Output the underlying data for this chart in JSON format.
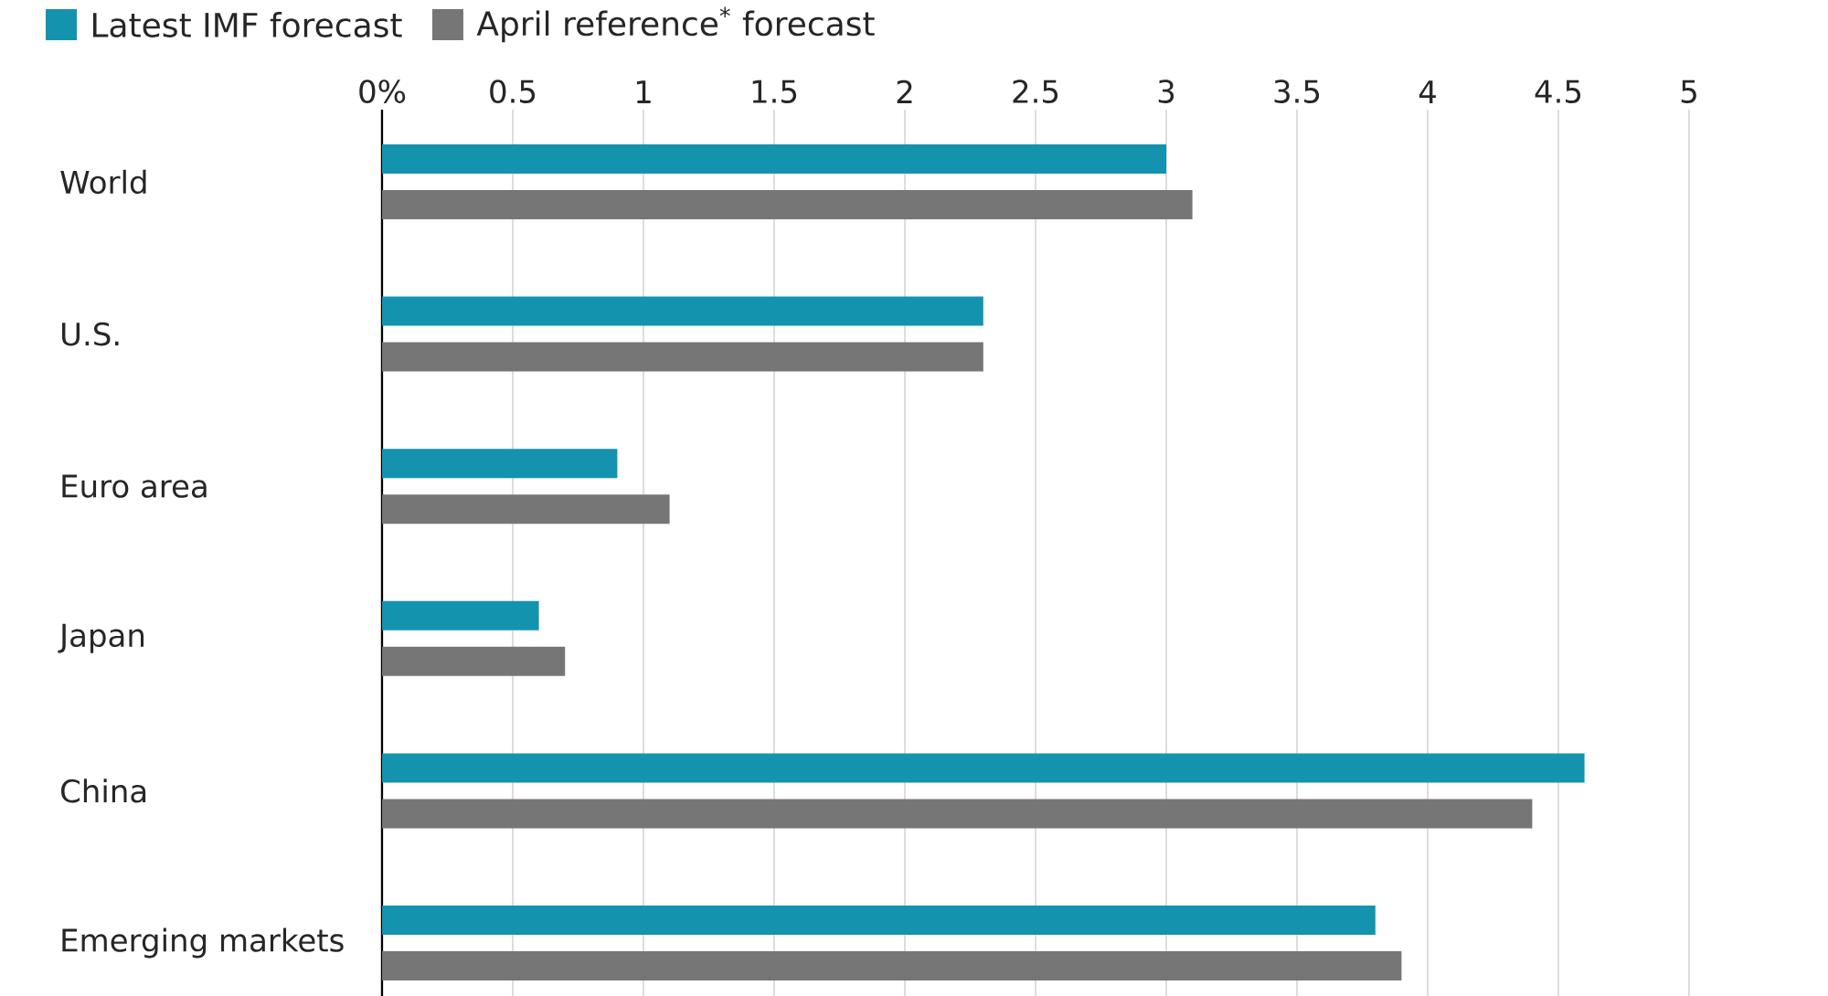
{
  "chart_data": {
    "type": "bar",
    "orientation": "horizontal",
    "categories": [
      "World",
      "U.S.",
      "Euro area",
      "Japan",
      "China",
      "Emerging markets"
    ],
    "series": [
      {
        "name": "Latest IMF forecast",
        "color": "#1493ae",
        "values": [
          3.0,
          2.3,
          0.9,
          0.6,
          4.6,
          3.8
        ]
      },
      {
        "name": "April reference$^{*}$ forecast",
        "color": "#767676",
        "values": [
          3.1,
          2.3,
          1.1,
          0.7,
          4.4,
          3.9
        ]
      }
    ],
    "xlim": [
      0,
      5
    ],
    "xticks": [
      {
        "value": 0,
        "label": "0%"
      },
      0.5,
      1,
      1.5,
      2,
      2.5,
      3,
      3.5,
      4,
      4.5,
      5
    ],
    "grid": "x",
    "legend": "top left"
  }
}
